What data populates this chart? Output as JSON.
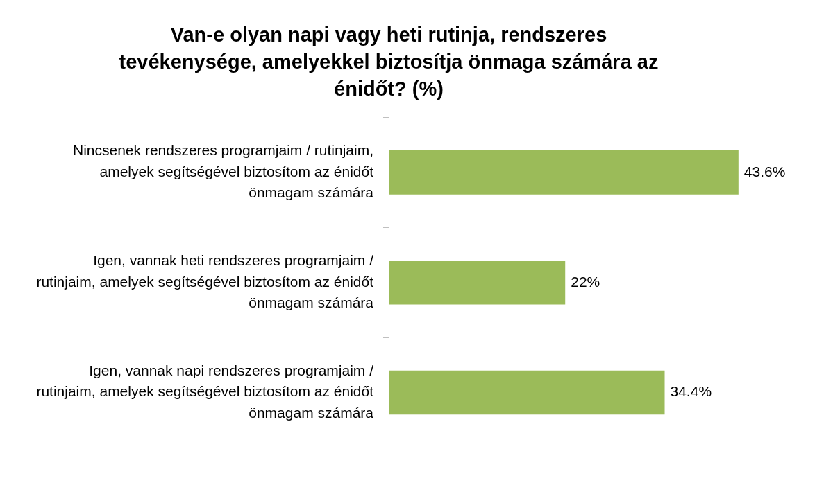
{
  "chart_data": {
    "type": "bar",
    "orientation": "horizontal",
    "title": "Van-e olyan napi vagy heti rutinja, rendszeres tevékenysége, amelyekkel biztosítja önmaga számára az énidőt? (%)",
    "categories": [
      "Nincsenek rendszeres programjaim / rutinjaim, amelyek segítségével biztosítom az énidőt önmagam számára",
      "Igen, vannak heti rendszeres programjaim / rutinjaim, amelyek segítségével biztosítom az énidőt önmagam számára",
      "Igen, vannak napi rendszeres programjaim / rutinjaim, amelyek segítségével biztosítom az énidőt önmagam számára"
    ],
    "values": [
      43.6,
      22,
      34.4
    ],
    "color": "#9bbb59",
    "value_labels": [
      "43.6%",
      "22%",
      "34.4%"
    ],
    "tick_labels": "y",
    "legend": false
  }
}
